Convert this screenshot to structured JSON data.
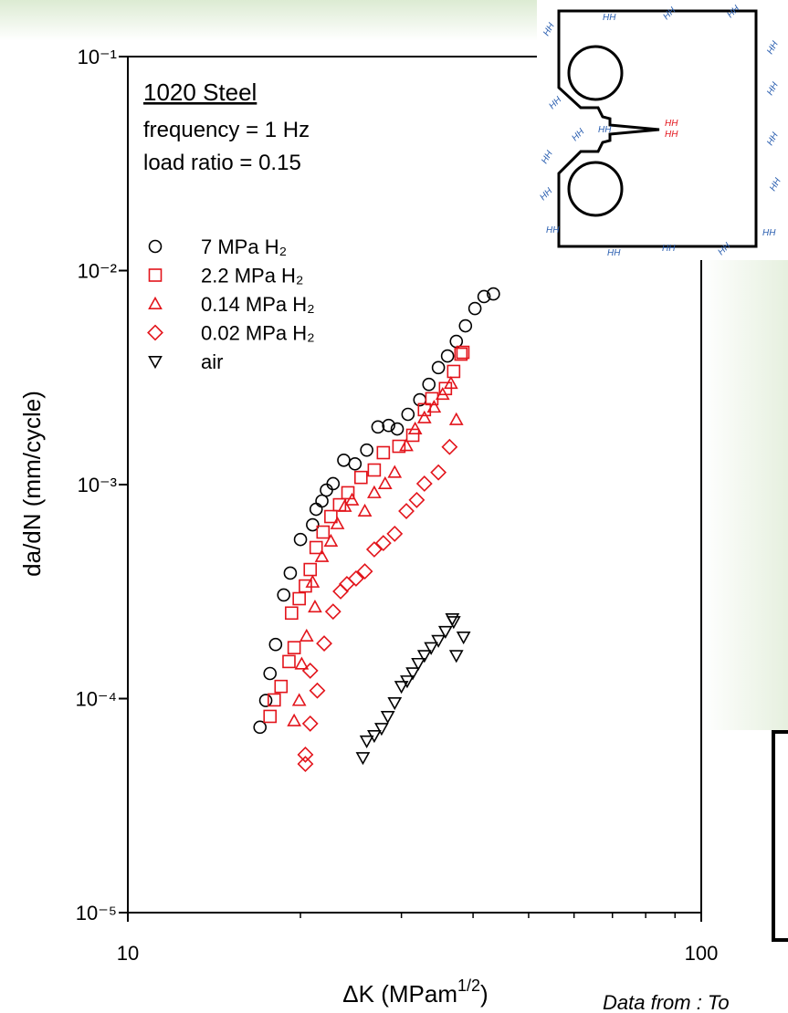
{
  "chart_data": {
    "type": "scatter",
    "title": "1020 Steel",
    "annotations": [
      "frequency = 1 Hz",
      "load ratio = 0.15"
    ],
    "x_label": [
      "ΔK  (MPam",
      "1/2",
      ")"
    ],
    "y_label": "da/dN  (mm/cycle)",
    "source_note": "Data from : To",
    "inset_text": "HH",
    "log_x": true,
    "log_y": true,
    "xlim": [
      10,
      100
    ],
    "ylim": [
      1e-05,
      0.1
    ],
    "xticks": [
      10,
      100
    ],
    "xticks_minor": [
      20,
      30,
      40,
      50,
      60,
      70,
      80,
      90
    ],
    "yticks": [
      {
        "value": 0.1,
        "label": "10⁻¹"
      },
      {
        "value": 0.01,
        "label": "10⁻²"
      },
      {
        "value": 0.001,
        "label": "10⁻³"
      },
      {
        "value": 0.0001,
        "label": "10⁻⁴"
      },
      {
        "value": 1e-05,
        "label": "10⁻⁵"
      }
    ],
    "series": [
      {
        "name": "7 MPa H₂",
        "color": "#000000",
        "marker": "circle",
        "x": [
          17.0,
          17.4,
          17.7,
          18.1,
          18.7,
          19.2,
          20.0,
          21.0,
          21.3,
          21.8,
          22.2,
          22.8,
          23.8,
          24.9,
          26.1,
          27.3,
          28.5,
          29.5,
          30.8,
          32.3,
          33.5,
          34.8,
          36.1,
          37.4,
          38.8,
          40.3,
          41.8,
          43.4
        ],
        "values": [
          7.35e-05,
          9.8e-05,
          0.000131,
          0.000179,
          0.000305,
          0.000386,
          0.000554,
          0.000649,
          0.000767,
          0.000838,
          0.000942,
          0.00101,
          0.0013,
          0.00125,
          0.00145,
          0.00186,
          0.00189,
          0.00182,
          0.00213,
          0.00249,
          0.00294,
          0.00352,
          0.00399,
          0.00467,
          0.00552,
          0.00665,
          0.00756,
          0.00778
        ]
      },
      {
        "name": "2.2 MPa H₂",
        "color": "#e3141b",
        "marker": "square",
        "x": [
          17.7,
          18.0,
          18.5,
          19.1,
          19.5,
          19.3,
          19.9,
          20.4,
          20.8,
          21.3,
          21.9,
          22.6,
          23.4,
          24.2,
          25.5,
          26.9,
          27.9,
          29.7,
          31.4,
          32.9,
          33.9,
          35.8,
          37.0,
          38.1,
          38.4
        ],
        "values": [
          8.26e-05,
          9.86e-05,
          0.000114,
          0.000149,
          0.000173,
          0.000251,
          0.000293,
          0.000336,
          0.000401,
          0.000508,
          0.0006,
          0.000709,
          0.000805,
          0.000916,
          0.00108,
          0.00117,
          0.00141,
          0.00151,
          0.0017,
          0.00224,
          0.00252,
          0.00281,
          0.00338,
          0.00407,
          0.00415
        ]
      },
      {
        "name": "0.14 MPa H₂",
        "color": "#e3141b",
        "marker": "triangle",
        "x": [
          19.5,
          19.9,
          20.1,
          20.5,
          21.2,
          21.0,
          21.8,
          22.6,
          23.2,
          23.9,
          24.6,
          25.9,
          26.9,
          28.1,
          29.2,
          30.6,
          31.7,
          32.9,
          34.2,
          35.4,
          36.6,
          37.4
        ],
        "values": [
          7.87e-05,
          9.8e-05,
          0.000145,
          0.000196,
          0.000268,
          0.00035,
          0.000461,
          0.000544,
          0.000656,
          0.000791,
          0.000847,
          0.000752,
          0.000916,
          0.00101,
          0.00114,
          0.00152,
          0.00182,
          0.00205,
          0.0023,
          0.00264,
          0.00297,
          0.00201
        ]
      },
      {
        "name": "0.02 MPa H₂",
        "color": "#e3141b",
        "marker": "diamond",
        "x": [
          20.4,
          20.4,
          20.8,
          21.4,
          20.8,
          22.0,
          22.8,
          23.5,
          24.1,
          25.0,
          25.9,
          26.9,
          27.9,
          29.2,
          30.6,
          31.9,
          32.9,
          34.8,
          36.4
        ],
        "values": [
          4.95e-05,
          5.47e-05,
          7.64e-05,
          0.000109,
          0.000135,
          0.000181,
          0.000255,
          0.000317,
          0.000343,
          0.000364,
          0.000393,
          0.000498,
          0.000533,
          0.000589,
          0.000752,
          0.000847,
          0.00101,
          0.00114,
          0.0015
        ]
      },
      {
        "name": "air",
        "color": "#000000",
        "marker": "triangle-down",
        "x": [
          25.7,
          26.1,
          26.9,
          27.7,
          28.4,
          29.2,
          30.0,
          30.7,
          31.4,
          32.1,
          32.9,
          33.8,
          34.8,
          35.8,
          36.8,
          37.4,
          38.5,
          37.0
        ],
        "values": [
          5.3e-05,
          6.34e-05,
          6.72e-05,
          7.26e-05,
          8.26e-05,
          9.57e-05,
          0.000114,
          0.000121,
          0.000132,
          0.000146,
          0.000159,
          0.000173,
          0.000187,
          0.000206,
          0.000236,
          0.000159,
          0.000194,
          0.000229
        ]
      }
    ]
  }
}
